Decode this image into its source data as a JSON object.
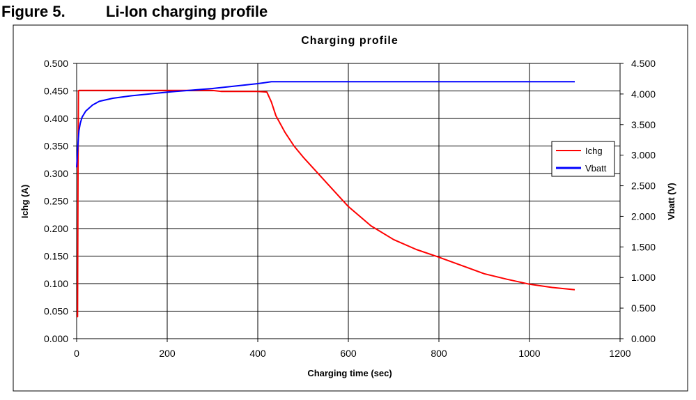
{
  "figure": {
    "label": "Figure 5.",
    "title": "Li-Ion charging profile"
  },
  "chart_data": {
    "type": "line",
    "title": "Charging profile",
    "xlabel": "Charging time (sec)",
    "ylabel_left": "Ichg (A)",
    "ylabel_right": "Vbatt (V)",
    "xlim": [
      0,
      1200
    ],
    "ylim_left": [
      0,
      0.5
    ],
    "ylim_right": [
      0,
      4.5
    ],
    "x_ticks": [
      "0",
      "200",
      "400",
      "600",
      "800",
      "1000",
      "1200"
    ],
    "y_left_ticks": [
      "0.000",
      "0.050",
      "0.100",
      "0.150",
      "0.200",
      "0.250",
      "0.300",
      "0.350",
      "0.400",
      "0.450",
      "0.500"
    ],
    "y_right_ticks": [
      "0.000",
      "0.500",
      "1.000",
      "1.500",
      "2.000",
      "2.500",
      "3.000",
      "3.500",
      "4.000",
      "4.500"
    ],
    "grid": true,
    "legend_position": "right",
    "series": [
      {
        "name": "Ichg",
        "axis": "left",
        "color": "#ff0000",
        "x": [
          0,
          2,
          3,
          4,
          5,
          100,
          200,
          300,
          320,
          400,
          420,
          430,
          440,
          460,
          480,
          500,
          550,
          600,
          650,
          700,
          750,
          800,
          850,
          900,
          950,
          1000,
          1050,
          1100
        ],
        "y": [
          0.04,
          0.04,
          0.3,
          0.45,
          0.451,
          0.451,
          0.451,
          0.451,
          0.449,
          0.449,
          0.448,
          0.43,
          0.405,
          0.375,
          0.35,
          0.33,
          0.285,
          0.24,
          0.205,
          0.18,
          0.162,
          0.148,
          0.133,
          0.118,
          0.108,
          0.099,
          0.093,
          0.089
        ]
      },
      {
        "name": "Vbatt",
        "axis": "right",
        "color": "#0000ff",
        "x": [
          0,
          3,
          5,
          8,
          12,
          20,
          35,
          50,
          80,
          120,
          160,
          200,
          250,
          300,
          350,
          400,
          430,
          500,
          600,
          700,
          800,
          900,
          1000,
          1100
        ],
        "y": [
          2.8,
          3.2,
          3.4,
          3.52,
          3.62,
          3.72,
          3.82,
          3.88,
          3.93,
          3.97,
          4.0,
          4.03,
          4.06,
          4.09,
          4.13,
          4.17,
          4.2,
          4.2,
          4.2,
          4.2,
          4.2,
          4.2,
          4.2,
          4.2
        ]
      }
    ]
  }
}
